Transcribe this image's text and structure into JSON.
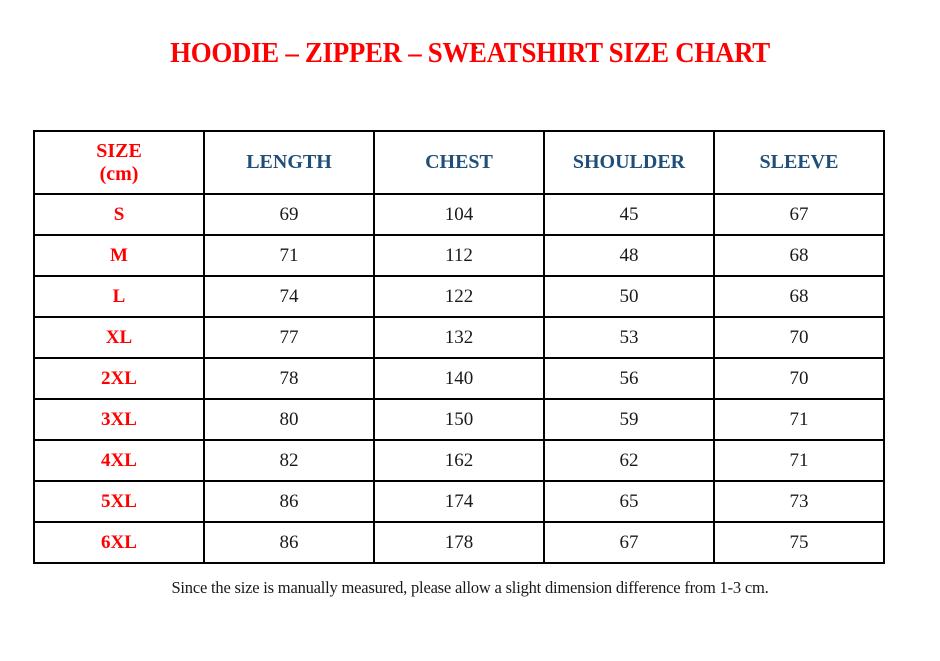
{
  "page": {
    "stray_mark": ".",
    "title": "HOODIE – ZIPPER – SWEATSHIRT SIZE CHART",
    "footer_note": "Since the size is manually measured, please allow a slight dimension difference from 1-3 cm."
  },
  "colors": {
    "title_red": "#FF0000",
    "size_label_red": "#FF0000",
    "header_blue": "#1F4E79",
    "body_text": "#1A1A1A",
    "border": "#000000",
    "background": "#FFFFFF"
  },
  "table": {
    "size_header": {
      "line1": "SIZE",
      "line2": "(cm)"
    },
    "headers": [
      "LENGTH",
      "CHEST",
      "SHOULDER",
      "SLEEVE"
    ],
    "rows": [
      {
        "size": "S",
        "length": "69",
        "chest": "104",
        "shoulder": "45",
        "sleeve": "67"
      },
      {
        "size": "M",
        "length": "71",
        "chest": "112",
        "shoulder": "48",
        "sleeve": "68"
      },
      {
        "size": "L",
        "length": "74",
        "chest": "122",
        "shoulder": "50",
        "sleeve": "68"
      },
      {
        "size": "XL",
        "length": "77",
        "chest": "132",
        "shoulder": "53",
        "sleeve": "70"
      },
      {
        "size": "2XL",
        "length": "78",
        "chest": "140",
        "shoulder": "56",
        "sleeve": "70"
      },
      {
        "size": "3XL",
        "length": "80",
        "chest": "150",
        "shoulder": "59",
        "sleeve": "71"
      },
      {
        "size": "4XL",
        "length": "82",
        "chest": "162",
        "shoulder": "62",
        "sleeve": "71"
      },
      {
        "size": "5XL",
        "length": "86",
        "chest": "174",
        "shoulder": "65",
        "sleeve": "73"
      },
      {
        "size": "6XL",
        "length": "86",
        "chest": "178",
        "shoulder": "67",
        "sleeve": "75"
      }
    ]
  }
}
